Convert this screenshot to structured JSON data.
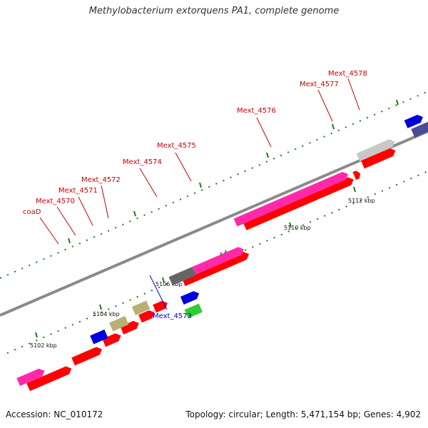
{
  "title": "Methylobacterium extorquens PA1, complete genome",
  "footer": {
    "accession": "Accession: NC_010172",
    "summary": "Topology: circular; Length: 5,471,154 bp; Genes: 4,902"
  },
  "colors": {
    "backbone": "#8a8a8a",
    "forward_cds": "#ff0000",
    "reverse_cds": "#ff0000",
    "rna": "#ff2aa8",
    "tick": "#1a7a1a",
    "label_red": "#cc0000",
    "label_blue": "#0000cc"
  },
  "scale": {
    "ticks": [
      {
        "label": "5102 kbp"
      },
      {
        "label": "5104 kbp"
      },
      {
        "label": "5106 kbp"
      },
      {
        "label": "5108 kbp"
      },
      {
        "label": "5110 kbp"
      },
      {
        "label": "5112 kbp"
      }
    ]
  },
  "gene_labels": [
    {
      "name": "coaD",
      "color": "#cc0000"
    },
    {
      "name": "Mext_4570",
      "color": "#cc0000"
    },
    {
      "name": "Mext_4571",
      "color": "#cc0000"
    },
    {
      "name": "Mext_4572",
      "color": "#cc0000"
    },
    {
      "name": "Mext_4574",
      "color": "#cc0000"
    },
    {
      "name": "Mext_4575",
      "color": "#cc0000"
    },
    {
      "name": "Mext_4576",
      "color": "#cc0000"
    },
    {
      "name": "Mext_4577",
      "color": "#cc0000"
    },
    {
      "name": "Mext_4578",
      "color": "#cc0000"
    },
    {
      "name": "Mext_4573",
      "color": "#0000cc"
    }
  ]
}
